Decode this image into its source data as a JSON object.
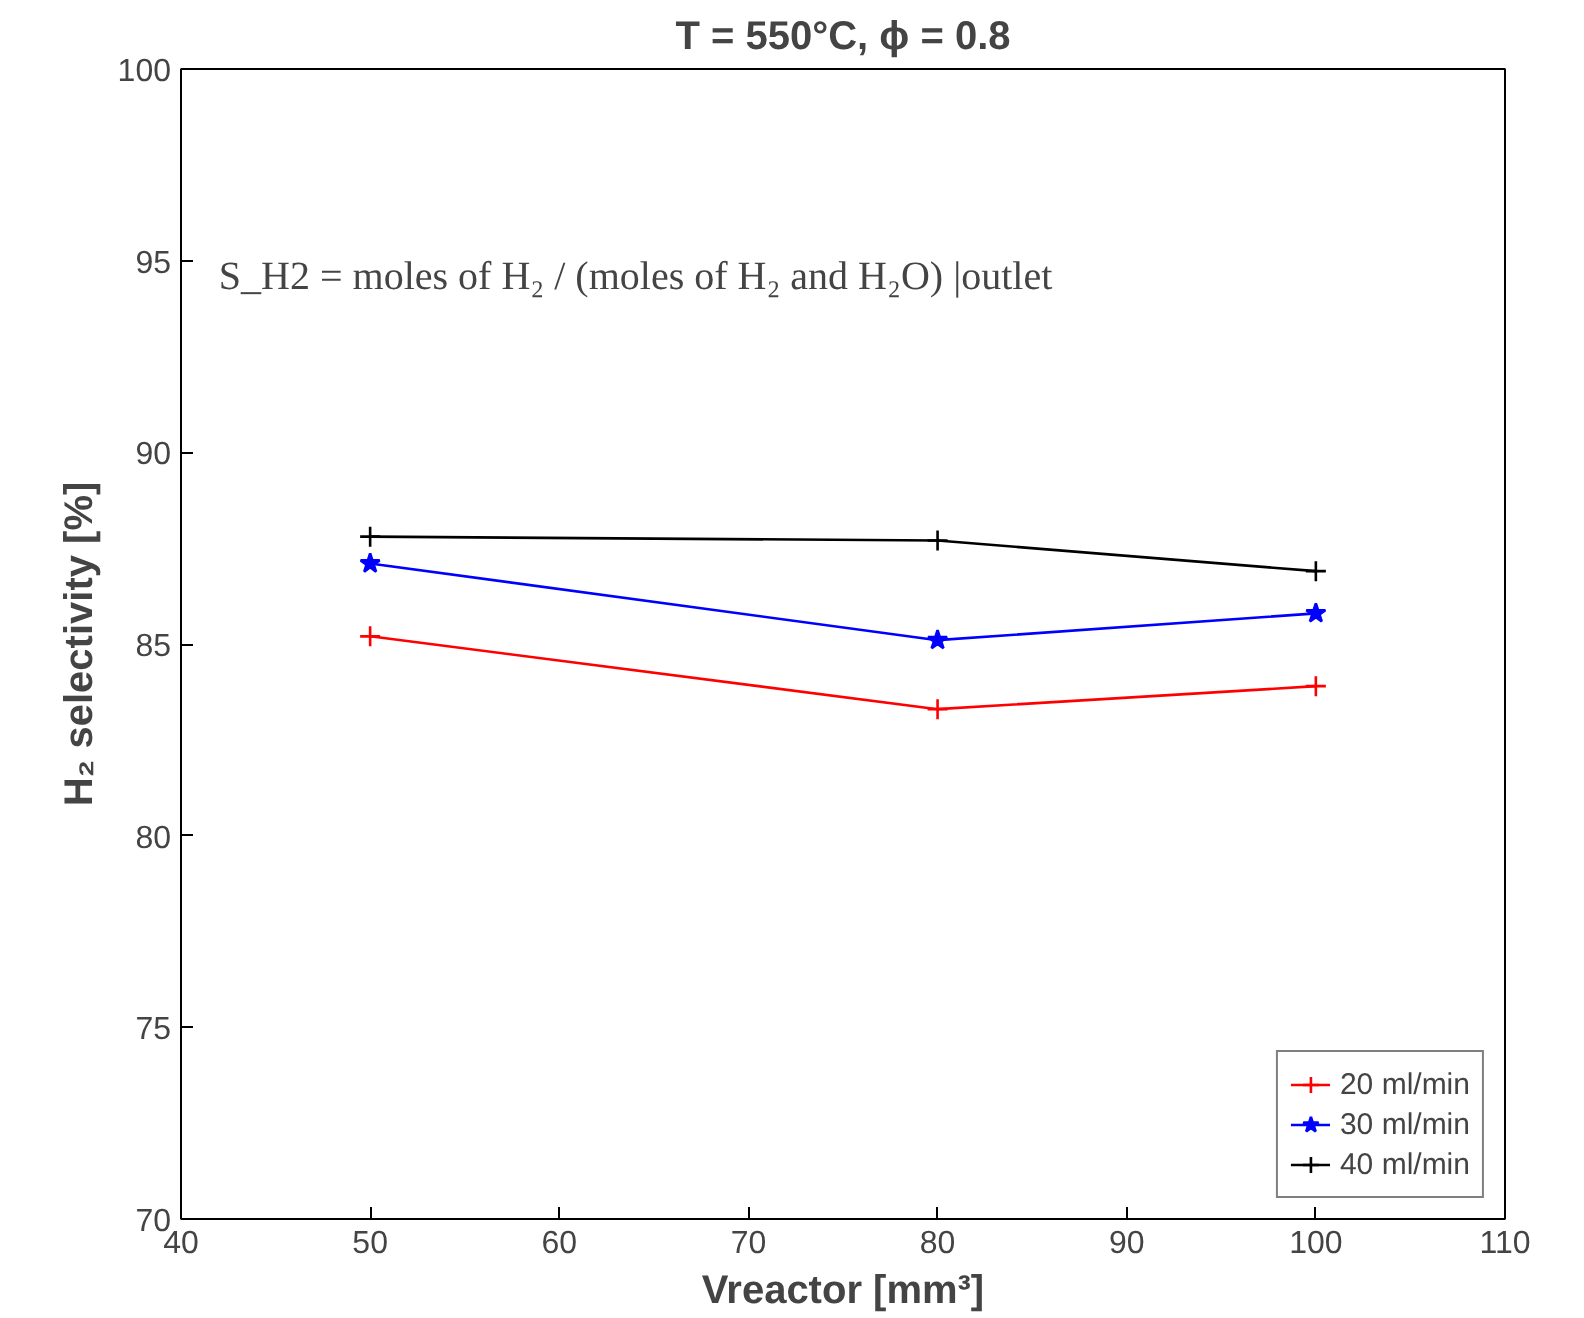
{
  "chart_data": {
    "type": "line",
    "title": "T = 550°C, ϕ = 0.8",
    "xlabel": "Vreactor [mm³]",
    "ylabel": "H₂ selectivity [%]",
    "x": [
      50,
      80,
      100
    ],
    "series": [
      {
        "name": "20 ml/min",
        "color": "#ff0000",
        "marker": "cross",
        "values": [
          85.2,
          83.3,
          83.9
        ]
      },
      {
        "name": "30 ml/min",
        "color": "#0000ff",
        "marker": "star",
        "values": [
          87.1,
          85.1,
          85.8
        ]
      },
      {
        "name": "40 ml/min",
        "color": "#000000",
        "marker": "cross",
        "values": [
          87.8,
          87.7,
          86.9
        ]
      }
    ],
    "xlim": [
      40,
      110
    ],
    "xticks": [
      40,
      50,
      60,
      70,
      80,
      90,
      100,
      110
    ],
    "ylim": [
      70,
      100
    ],
    "yticks": [
      70,
      75,
      80,
      85,
      90,
      95,
      100
    ],
    "annotations": [
      "S_H2 = moles of H₂ / (moles of H₂ and H₂O) |outlet"
    ],
    "grid": false,
    "legend": "bottom right",
    "line_style": "solid"
  }
}
